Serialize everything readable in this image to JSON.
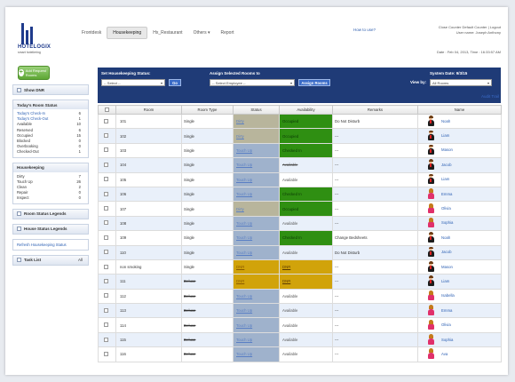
{
  "brand": {
    "name": "HOTELOGIX",
    "tagline": "smart hoteliering"
  },
  "nav": [
    "Frontdesk",
    "Housekeeping",
    "Hx_Restaurant",
    "Others",
    "Report"
  ],
  "nav_active": "Housekeeping",
  "others_caret": "▾",
  "help_link": "How to use?",
  "user": {
    "line1": "Close Counter Default Counter | Logout",
    "line2": "User name: Joseph Anthony"
  },
  "date_line": "Date : Feb 04, 2013,  Time : 16:33:57 AM",
  "sidebar": {
    "add_button": "Add Request Rooms",
    "show_dnr": "Show DNR",
    "room_status": {
      "title": "Today's Room Status",
      "rows": [
        {
          "k": "Today's Check-In",
          "v": "6",
          "link": true
        },
        {
          "k": "Today's Check-Out",
          "v": "1",
          "link": true
        },
        {
          "k": "Available",
          "v": "10",
          "link": false
        },
        {
          "k": "Reserved",
          "v": "6",
          "link": false
        },
        {
          "k": "Occupied",
          "v": "15",
          "link": false
        },
        {
          "k": "Blocked",
          "v": "0",
          "link": false
        },
        {
          "k": "Overbooking",
          "v": "0",
          "link": false
        },
        {
          "k": "Checked-Out",
          "v": "1",
          "link": false
        }
      ]
    },
    "housekeeping": {
      "title": "Housekeeping",
      "rows": [
        {
          "k": "Dirty",
          "v": "7"
        },
        {
          "k": "Touch Up",
          "v": "26"
        },
        {
          "k": "Clean",
          "v": "2"
        },
        {
          "k": "Repair",
          "v": "0"
        },
        {
          "k": "Inspect",
          "v": "0"
        }
      ]
    },
    "legend1": "Room Status Legends",
    "legend2": "House Status Legends",
    "refresh": "Refresh Housekeeping Status",
    "task_list": "Task List",
    "task_all": "All"
  },
  "controls": {
    "set_status_label": "Set Housekeeping Status:",
    "set_status_value": "-- Select --",
    "go": "Go",
    "assign_label": "Assign Selected Rooms to",
    "assign_value": "-- Select Employee --",
    "assign_btn": "Assign Rooms",
    "system_date": "System Date: 9/3/15",
    "view_by_label": "View by:",
    "view_by_value": "All Rooms",
    "audit": "Audit Trail"
  },
  "table": {
    "headers": [
      "",
      "Room",
      "Room Type",
      "Status",
      "Availability",
      "Remarks",
      "Name"
    ],
    "rows": [
      {
        "room": "101",
        "type": "Single",
        "status": "Dirty",
        "st": "dirty",
        "avail": "Occupied",
        "av": "occ",
        "remark": "Do Not Disturb",
        "name": "Noah",
        "g": "m"
      },
      {
        "room": "102",
        "type": "Single",
        "status": "Dirty",
        "st": "dirty",
        "avail": "Occupied",
        "av": "occ",
        "remark": "---",
        "name": "Liam",
        "g": "m"
      },
      {
        "room": "103",
        "type": "Single",
        "status": "Touch Up",
        "st": "clean",
        "avail": "Checked In",
        "av": "occ",
        "remark": "---",
        "name": "Mason",
        "g": "m"
      },
      {
        "room": "104",
        "type": "Single",
        "status": "Touch Up",
        "st": "clean",
        "avail": "Available",
        "av": "strike",
        "remark": "---",
        "name": "Jacob",
        "g": "m"
      },
      {
        "room": "105",
        "type": "Single",
        "status": "Touch Up",
        "st": "clean",
        "avail": "Available",
        "av": "",
        "remark": "---",
        "name": "Liam",
        "g": "m"
      },
      {
        "room": "106",
        "type": "Single",
        "status": "Touch Up",
        "st": "clean",
        "avail": "Checked In",
        "av": "occ",
        "remark": "---",
        "name": "Emma",
        "g": "f"
      },
      {
        "room": "107",
        "type": "Single",
        "status": "Dirty",
        "st": "dirty",
        "avail": "Occupied",
        "av": "occ",
        "remark": "---",
        "name": "Olivia",
        "g": "f"
      },
      {
        "room": "108",
        "type": "Single",
        "status": "Touch Up",
        "st": "clean",
        "avail": "Available",
        "av": "",
        "remark": "---",
        "name": "Sophia",
        "g": "f"
      },
      {
        "room": "109",
        "type": "Single",
        "status": "Touch Up",
        "st": "clean",
        "avail": "Checked In",
        "av": "occ",
        "remark": "Change Bedsheets",
        "name": "Noah",
        "g": "m"
      },
      {
        "room": "110",
        "type": "Single",
        "status": "Touch Up",
        "st": "clean",
        "avail": "Available",
        "av": "",
        "remark": "Do Not Disturb",
        "name": "Jacob",
        "g": "m"
      },
      {
        "room": "non smoking",
        "type": "Single",
        "status": "DNR",
        "st": "dnr",
        "avail": "DNR",
        "av": "dnr",
        "remark": "---",
        "name": "Mason",
        "g": "m"
      },
      {
        "room": "111",
        "type": "Deluxe",
        "status": "DNR",
        "st": "dnr",
        "avail": "DNR",
        "av": "dnr",
        "remark": "---",
        "name": "Liam",
        "g": "m"
      },
      {
        "room": "112",
        "type": "Deluxe",
        "status": "Touch Up",
        "st": "clean",
        "avail": "Available",
        "av": "",
        "remark": "---",
        "name": "Isabella",
        "g": "f"
      },
      {
        "room": "113",
        "type": "Deluxe",
        "status": "Touch Up",
        "st": "clean",
        "avail": "Available",
        "av": "",
        "remark": "---",
        "name": "Emma",
        "g": "f"
      },
      {
        "room": "114",
        "type": "Deluxe",
        "status": "Touch Up",
        "st": "clean",
        "avail": "Available",
        "av": "",
        "remark": "---",
        "name": "Olivia",
        "g": "f"
      },
      {
        "room": "115",
        "type": "Deluxe",
        "status": "Touch Up",
        "st": "clean",
        "avail": "Available",
        "av": "",
        "remark": "---",
        "name": "Sophia",
        "g": "f"
      },
      {
        "room": "116",
        "type": "Deluxe",
        "status": "Touch Up",
        "st": "clean",
        "avail": "Available",
        "av": "",
        "remark": "---",
        "name": "Ava",
        "g": "f"
      }
    ]
  }
}
